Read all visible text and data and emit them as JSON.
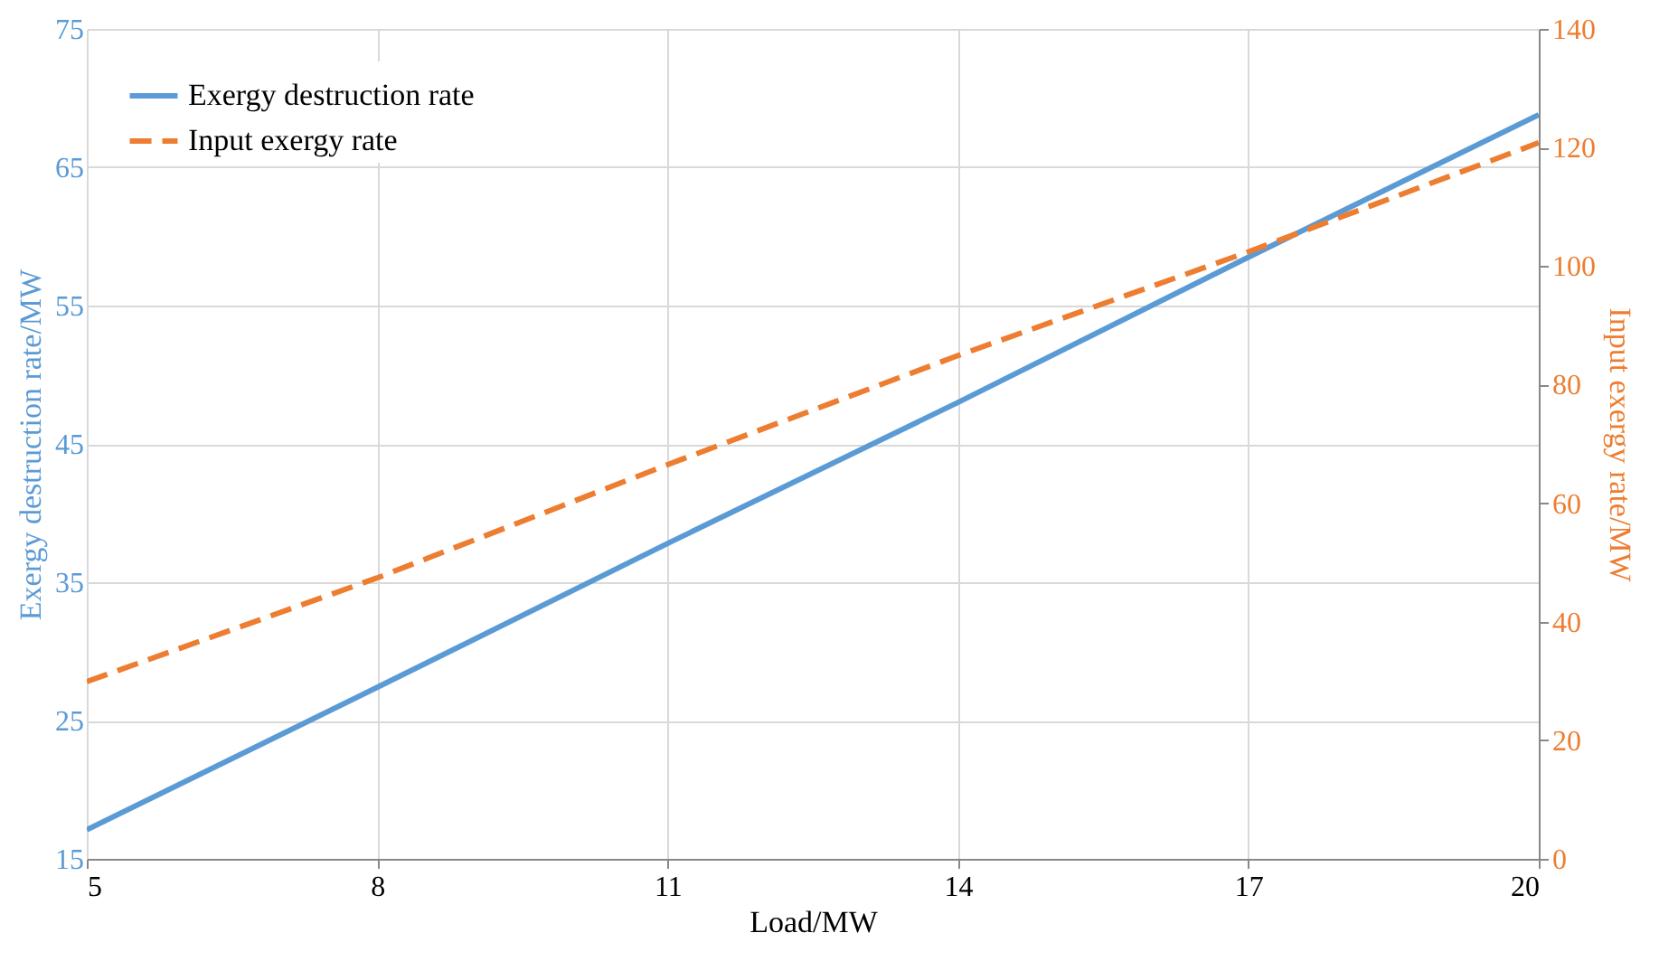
{
  "chart_data": {
    "type": "line",
    "xlabel": "Load/MW",
    "ylabel": "Exergy destruction rate/MW",
    "y2label": "Input exergy rate/MW",
    "x": [
      5,
      8,
      11,
      14,
      17,
      20
    ],
    "series": [
      {
        "name": "Exergy destruction rate",
        "color": "#5b9bd5",
        "values": [
          17.1,
          27.4,
          37.8,
          48.0,
          58.5,
          68.8
        ],
        "line_style": "solid"
      },
      {
        "name": "Input exergy rate",
        "color": "#ed7d31",
        "values": [
          29.9,
          47.4,
          66.5,
          84.9,
          102.4,
          120.8
        ],
        "axis": "y2",
        "line_style": "dashed"
      }
    ],
    "xlim": [
      5,
      20
    ],
    "xticks": [
      5,
      8,
      11,
      14,
      17,
      20
    ],
    "ylim": [
      15,
      75
    ],
    "yticks": [
      15,
      25,
      35,
      45,
      55,
      65,
      75
    ],
    "y2lim": [
      0,
      140
    ],
    "y2ticks": [
      0,
      20,
      40,
      60,
      80,
      100,
      120,
      140
    ],
    "grid": true,
    "legend": "top left",
    "marker": "none"
  }
}
